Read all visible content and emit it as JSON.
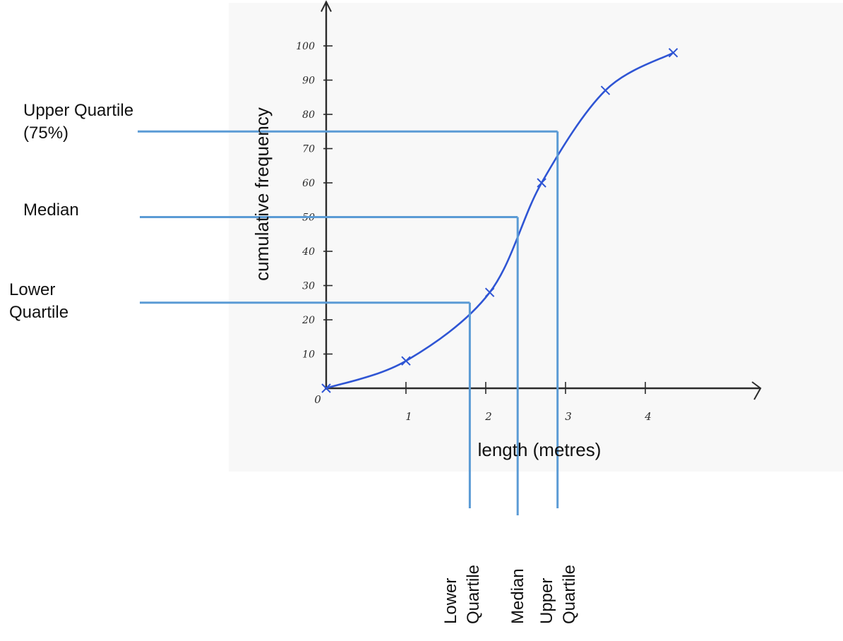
{
  "chart_data": {
    "type": "line",
    "title": "",
    "xlabel": "length (metres)",
    "ylabel": "cumulative frequency",
    "origin_label": "0",
    "xlim": [
      0,
      5.4
    ],
    "ylim": [
      0,
      110
    ],
    "x_ticks": [
      {
        "value": 1,
        "label": "1"
      },
      {
        "value": 2,
        "label": "2"
      },
      {
        "value": 3,
        "label": "3"
      },
      {
        "value": 4,
        "label": "4"
      }
    ],
    "y_ticks": [
      {
        "value": 10,
        "label": "10"
      },
      {
        "value": 20,
        "label": "20"
      },
      {
        "value": 30,
        "label": "30"
      },
      {
        "value": 40,
        "label": "40"
      },
      {
        "value": 50,
        "label": "50"
      },
      {
        "value": 60,
        "label": "60"
      },
      {
        "value": 70,
        "label": "70"
      },
      {
        "value": 80,
        "label": "80"
      },
      {
        "value": 90,
        "label": "90"
      },
      {
        "value": 100,
        "label": "100"
      }
    ],
    "series": [
      {
        "x": [
          0,
          1,
          2.05,
          2.7,
          3.5,
          4.35
        ],
        "y": [
          0,
          8,
          28,
          60,
          87,
          98
        ],
        "color": "#2f55d4"
      }
    ],
    "quartiles": [
      {
        "y": 25,
        "x": 1.8,
        "left_label_lines": [
          "Lower",
          "Quartile"
        ],
        "bottom_label_lines": [
          "Lower",
          "Quartile"
        ]
      },
      {
        "y": 50,
        "x": 2.4,
        "left_label_lines": [
          "Median"
        ],
        "bottom_label_lines": [
          "Median"
        ]
      },
      {
        "y": 75,
        "x": 2.9,
        "left_label_lines": [
          "Upper Quartile",
          "(75%)"
        ],
        "bottom_label_lines": [
          "Upper",
          "Quartile"
        ]
      }
    ],
    "guide_color": "#5b9bd5",
    "grid": false,
    "legend": "none"
  }
}
